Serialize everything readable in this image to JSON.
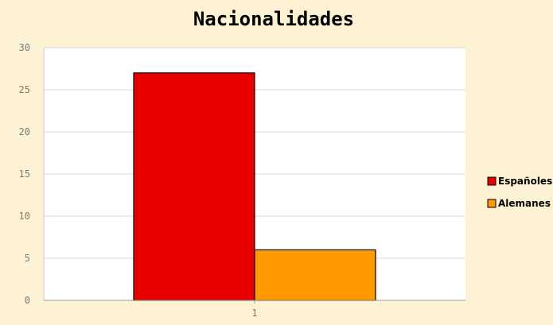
{
  "chart_data": {
    "type": "bar",
    "title": "Nacionalidades",
    "categories": [
      "1"
    ],
    "series": [
      {
        "name": "Españoles",
        "values": [
          27
        ],
        "color": "#e80000"
      },
      {
        "name": "Alemanes",
        "values": [
          6
        ],
        "color": "#ff9900"
      }
    ],
    "xlabel": "",
    "ylabel": "",
    "ylim": [
      0,
      30
    ],
    "yticks": [
      0,
      5,
      10,
      15,
      20,
      25,
      30
    ],
    "grid": true,
    "legend": "right",
    "plot_background": "#ffffff",
    "page_background": "#fdf2d3"
  }
}
